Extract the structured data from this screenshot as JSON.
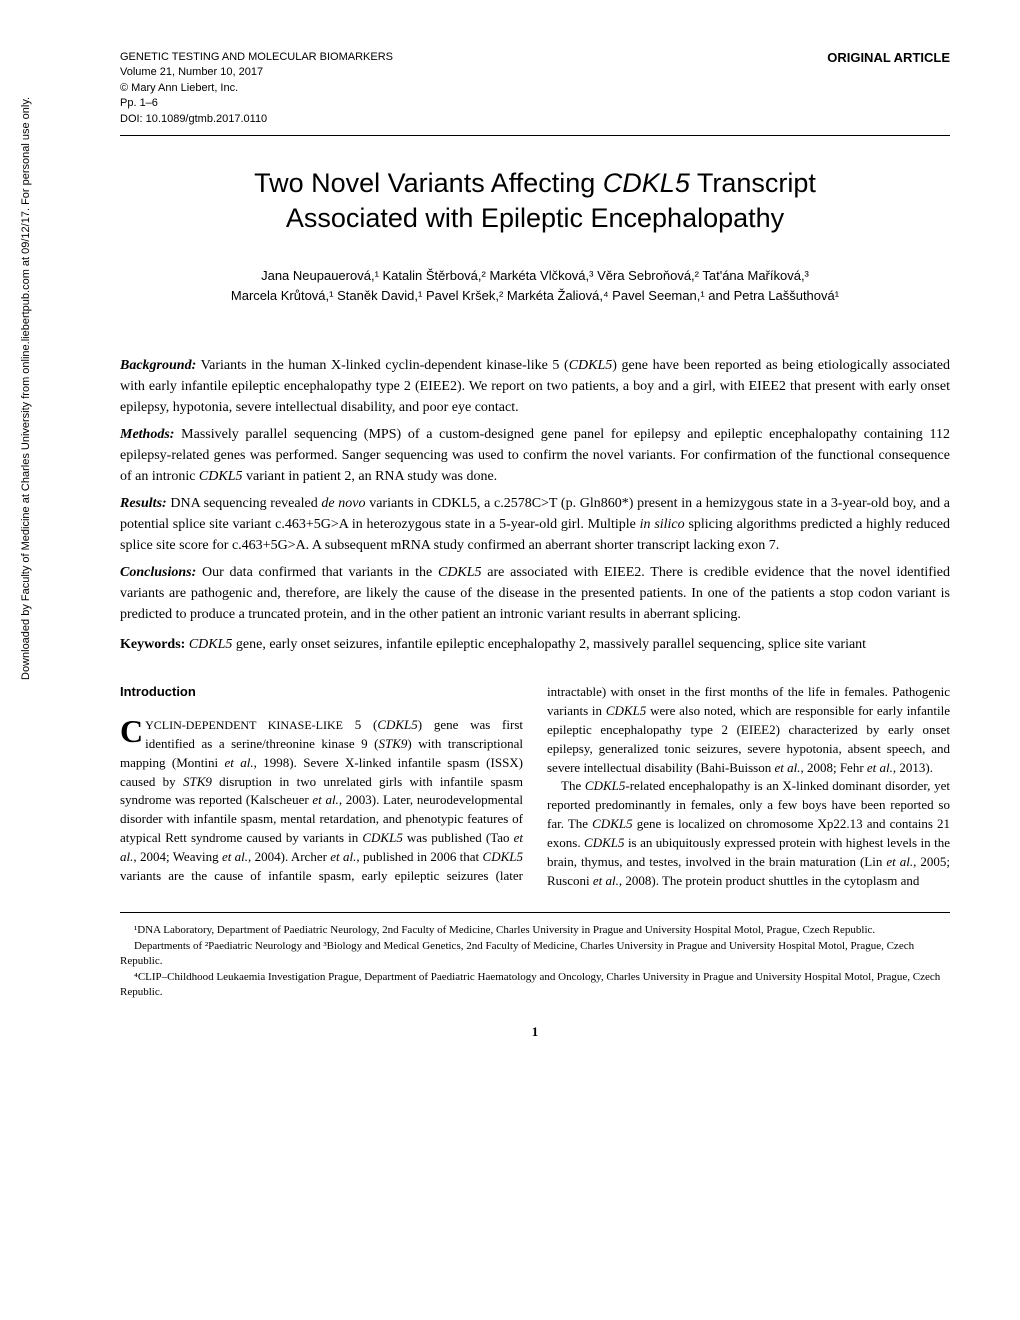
{
  "sidebar": {
    "download_notice": "Downloaded by Faculty of Medicine at Charles University from online.liebertpub.com at 09/12/17. For personal use only."
  },
  "header": {
    "journal_line1": "GENETIC TESTING AND MOLECULAR BIOMARKERS",
    "journal_line2": "Volume 21, Number 10, 2017",
    "journal_line3": "© Mary Ann Liebert, Inc.",
    "journal_line4": "Pp. 1–6",
    "journal_line5": "DOI: 10.1089/gtmb.2017.0110",
    "article_type": "ORIGINAL ARTICLE"
  },
  "title_line1": "Two Novel Variants Affecting ",
  "title_italic": "CDKL5",
  "title_line1_end": " Transcript",
  "title_line2": "Associated with Epileptic Encephalopathy",
  "authors_line1": "Jana Neupauerová,¹ Katalin Štěrbová,² Markéta Vlčková,³ Věra Sebroňová,² Tat'ána Maříková,³",
  "authors_line2": "Marcela Krůtová,¹ Staněk David,¹ Pavel Kršek,² Markéta Žaliová,⁴ Pavel Seeman,¹ and Petra Laššuthová¹",
  "abstract": {
    "background_label": "Background:",
    "background_text": " Variants in the human X-linked cyclin-dependent kinase-like 5 (",
    "background_italic1": "CDKL5",
    "background_text2": ") gene have been reported as being etiologically associated with early infantile epileptic encephalopathy type 2 (EIEE2). We report on two patients, a boy and a girl, with EIEE2 that present with early onset epilepsy, hypotonia, severe intellectual disability, and poor eye contact.",
    "methods_label": "Methods:",
    "methods_text": " Massively parallel sequencing (MPS) of a custom-designed gene panel for epilepsy and epileptic encephalopathy containing 112 epilepsy-related genes was performed. Sanger sequencing was used to confirm the novel variants. For confirmation of the functional consequence of an intronic ",
    "methods_italic1": "CDKL5",
    "methods_text2": " variant in patient 2, an RNA study was done.",
    "results_label": "Results:",
    "results_text": " DNA sequencing revealed ",
    "results_italic1": "de novo",
    "results_text2": " variants in CDKL5, a c.2578C>T (p. Gln860*) present in a hemizygous state in a 3-year-old boy, and a potential splice site variant c.463+5G>A in heterozygous state in a 5-year-old girl. Multiple ",
    "results_italic2": "in silico",
    "results_text3": " splicing algorithms predicted a highly reduced splice site score for c.463+5G>A. A subsequent mRNA study confirmed an aberrant shorter transcript lacking exon 7.",
    "conclusions_label": "Conclusions:",
    "conclusions_text": " Our data confirmed that variants in the ",
    "conclusions_italic1": "CDKL5",
    "conclusions_text2": " are associated with EIEE2. There is credible evidence that the novel identified variants are pathogenic and, therefore, are likely the cause of the disease in the presented patients. In one of the patients a stop codon variant is predicted to produce a truncated protein, and in the other patient an intronic variant results in aberrant splicing."
  },
  "keywords": {
    "label": "Keywords:",
    "text": " ",
    "italic1": "CDKL5",
    "text2": " gene, early onset seizures, infantile epileptic encephalopathy 2, massively parallel sequencing, splice site variant"
  },
  "introduction": {
    "heading": "Introduction",
    "dropcap": "C",
    "p1_smallcaps": "YCLIN-DEPENDENT KINASE-LIKE",
    "p1_text1": " 5 (",
    "p1_italic1": "CDKL5",
    "p1_text2": ") gene was first identified as a serine/threonine kinase 9 (",
    "p1_italic2": "STK9",
    "p1_text3": ") with transcriptional mapping (Montini ",
    "p1_italic3": "et al.",
    "p1_text4": ", 1998). Severe X-linked infantile spasm (ISSX) caused by ",
    "p1_italic4": "STK9",
    "p1_text5": " disruption in two unrelated girls with infantile spasm syndrome was reported (Kalscheuer ",
    "p1_italic5": "et al.",
    "p1_text6": ", 2003). Later, neurodevelopmental disorder with infantile spasm, mental retardation, and phenotypic features of atypical Rett syndrome caused by variants in ",
    "p1_italic6": "CDKL5",
    "p1_text7": " was published (Tao ",
    "p1_italic7": "et al.",
    "p1_text8": ", 2004; Weaving ",
    "p1_italic8": "et al.",
    "p1_text9": ", 2004). Archer ",
    "p1_italic9": "et al.",
    "p1_text10": ", published in 2006 that ",
    "p1_italic10": "CDKL5",
    "p1_text11": " variants are the cause of infantile spasm, early epileptic seizures (later intractable) with onset in the first months of the life in fe",
    "p2_text1": "males. Pathogenic variants in ",
    "p2_italic1": "CDKL5",
    "p2_text2": " were also noted, which are responsible for early infantile epileptic encephalopathy type 2 (EIEE2) characterized by early onset epilepsy, generalized tonic seizures, severe hypotonia, absent speech, and severe intellectual disability (Bahi-Buisson ",
    "p2_italic2": "et al.",
    "p2_text3": ", 2008; Fehr ",
    "p2_italic3": "et al.",
    "p2_text4": ", 2013).",
    "p3_text1": "The ",
    "p3_italic1": "CDKL5",
    "p3_text2": "-related encephalopathy is an X-linked dominant disorder, yet reported predominantly in females, only a few boys have been reported so far. The ",
    "p3_italic2": "CDKL5",
    "p3_text3": " gene is localized on chromosome Xp22.13 and contains 21 exons. ",
    "p3_italic3": "CDKL5",
    "p3_text4": " is an ubiquitously expressed protein with highest levels in the brain, thymus, and testes, involved in the brain maturation (Lin ",
    "p3_italic4": "et al.",
    "p3_text5": ", 2005; Rusconi ",
    "p3_italic5": "et al.",
    "p3_text6": ", 2008). The protein product shuttles in the cytoplasm and"
  },
  "affiliations": {
    "a1": "¹DNA Laboratory, Department of Paediatric Neurology, 2nd Faculty of Medicine, Charles University in Prague and University Hospital Motol, Prague, Czech Republic.",
    "a2": "Departments of ²Paediatric Neurology and ³Biology and Medical Genetics, 2nd Faculty of Medicine, Charles University in Prague and University Hospital Motol, Prague, Czech Republic.",
    "a3": "⁴CLIP–Childhood Leukaemia Investigation Prague, Department of Paediatric Haematology and Oncology, Charles University in Prague and University Hospital Motol, Prague, Czech Republic."
  },
  "page_number": "1"
}
